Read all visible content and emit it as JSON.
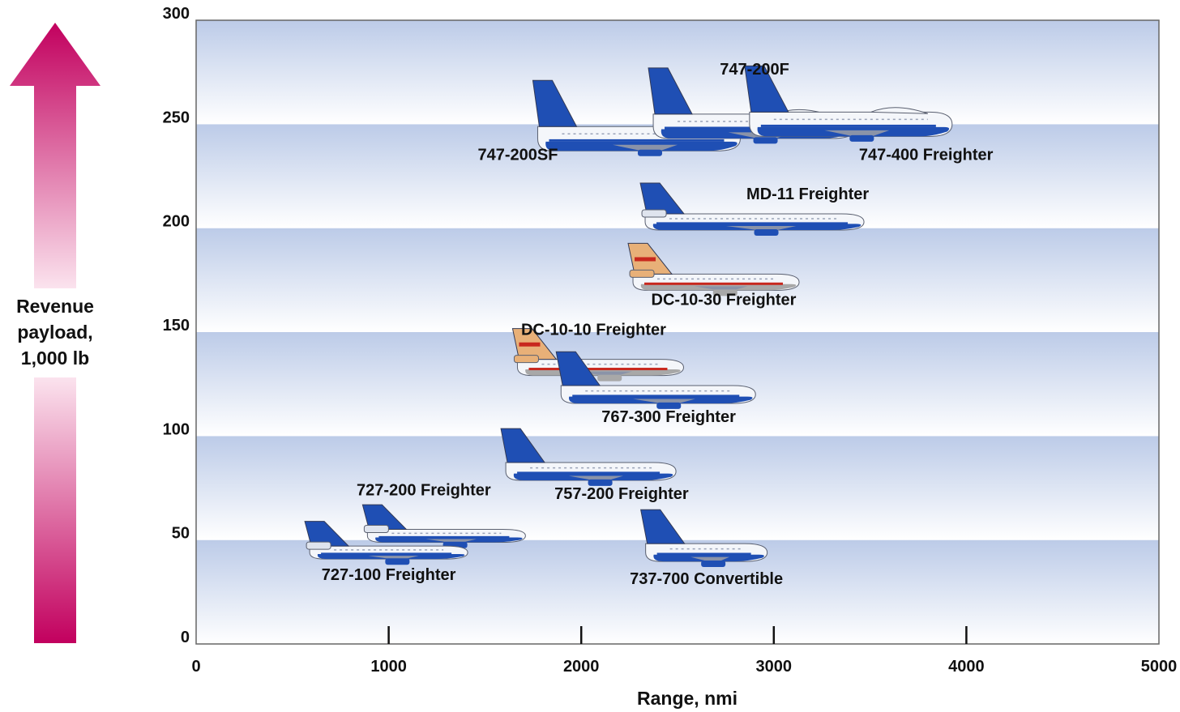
{
  "colors": {
    "arrow": "#c2005e",
    "band_dark": "#bccbe8",
    "band_light": "#ffffff",
    "boeing_blue": "#1f4fb4",
    "douglas_red": "#c8281e",
    "douglas_tan": "#e8b078",
    "fuselage": "#f4f6fa"
  },
  "ylabel_lines": [
    "Revenue",
    "payload,",
    "1,000 lb"
  ],
  "chart_data": {
    "type": "scatter",
    "title": "",
    "xlabel": "Range, nmi",
    "ylabel": "Revenue payload, 1,000 lb",
    "xlim": [
      0,
      5000
    ],
    "ylim": [
      0,
      300
    ],
    "x_ticks": [
      0,
      1000,
      2000,
      3000,
      4000,
      5000
    ],
    "x_tick_labels": [
      "0",
      "1000",
      "2000",
      "3000",
      "4000",
      "5000"
    ],
    "y_ticks": [
      0,
      50,
      100,
      150,
      200,
      250,
      300
    ],
    "y_tick_labels": [
      "0",
      "50",
      "100",
      "150",
      "200",
      "250",
      "300"
    ],
    "grid": "horizontal bands every 50",
    "points": [
      {
        "name": "747-200SF",
        "x": 2300,
        "y": 243,
        "livery": "boeing-747"
      },
      {
        "name": "747-200F",
        "x": 2900,
        "y": 249,
        "livery": "boeing-747"
      },
      {
        "name": "747-400 Freighter",
        "x": 3400,
        "y": 250,
        "livery": "boeing-747"
      },
      {
        "name": "MD-11 Freighter",
        "x": 2900,
        "y": 203,
        "livery": "md-11"
      },
      {
        "name": "DC-10-30 Freighter",
        "x": 2700,
        "y": 174,
        "livery": "dc-10"
      },
      {
        "name": "DC-10-10 Freighter",
        "x": 2100,
        "y": 133,
        "livery": "dc-10"
      },
      {
        "name": "767-300 Freighter",
        "x": 2400,
        "y": 120,
        "livery": "boeing"
      },
      {
        "name": "757-200 Freighter",
        "x": 2050,
        "y": 83,
        "livery": "boeing"
      },
      {
        "name": "727-200 Freighter",
        "x": 1300,
        "y": 52,
        "livery": "boeing-727"
      },
      {
        "name": "727-100 Freighter",
        "x": 1000,
        "y": 44,
        "livery": "boeing-727"
      },
      {
        "name": "737-700 Convertible",
        "x": 2650,
        "y": 44,
        "livery": "boeing"
      }
    ]
  }
}
